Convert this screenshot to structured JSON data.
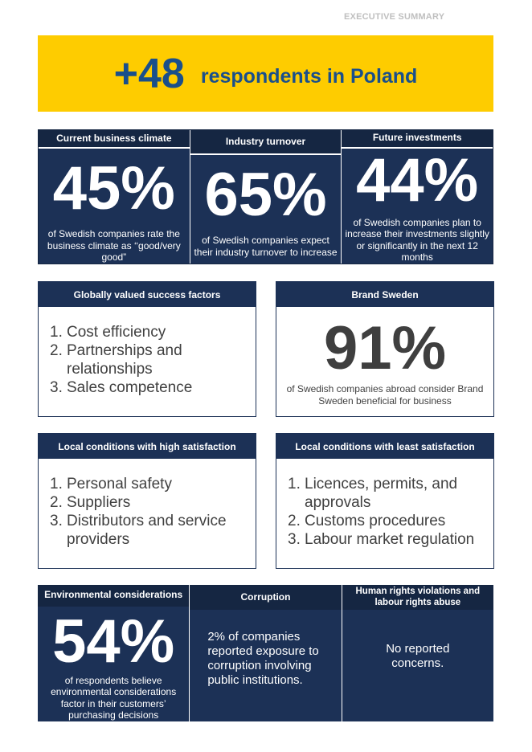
{
  "header": {
    "label": "EXECUTIVE SUMMARY"
  },
  "banner": {
    "number": "+48",
    "text": "respondents in Poland"
  },
  "stats": [
    {
      "title": "Current business climate",
      "value": "45%",
      "desc": "of Swedish companies rate the business climate as ‘‘good/very good”"
    },
    {
      "title": "Industry turnover",
      "value": "65%",
      "desc": "of Swedish companies expect their industry turnover to increase"
    },
    {
      "title": "Future investments",
      "value": "44%",
      "desc": "of Swedish companies plan to increase their investments slightly or significantly in the next 12 months"
    }
  ],
  "success_factors": {
    "title": "Globally valued success factors",
    "items": [
      {
        "n": "1.",
        "text": "Cost efficiency"
      },
      {
        "n": "2.",
        "text": "Partnerships and relationships"
      },
      {
        "n": "3.",
        "text": "Sales competence"
      }
    ]
  },
  "brand": {
    "title": "Brand Sweden",
    "value": "91%",
    "desc": "of Swedish companies abroad consider Brand Sweden beneficial for business"
  },
  "high_satisfaction": {
    "title": "Local conditions with high satisfaction",
    "items": [
      {
        "n": "1.",
        "text": "Personal safety"
      },
      {
        "n": "2.",
        "text": "Suppliers"
      },
      {
        "n": "3.",
        "text": "Distributors and service providers"
      }
    ]
  },
  "least_satisfaction": {
    "title": "Local conditions with least satisfaction",
    "items": [
      {
        "n": "1.",
        "text": "Licences, permits, and approvals"
      },
      {
        "n": "2.",
        "text": "Customs procedures"
      },
      {
        "n": "3.",
        "text": "Labour market regulation"
      }
    ]
  },
  "environment": {
    "title": "Environmental considerations",
    "value": "54%",
    "desc": "of respondents believe environmental considerations factor in their customers’ purchasing decisions"
  },
  "corruption": {
    "title": "Corruption",
    "desc": "2% of companies reported exposure to corruption involving public institutions."
  },
  "human_rights": {
    "title": "Human rights violations and labour rights abuse",
    "desc": "No reported concerns."
  },
  "colors": {
    "yellow": "#fecc00",
    "navy": "#1c3156",
    "navy_dark": "#152642",
    "blue_text": "#1a4f8b"
  }
}
